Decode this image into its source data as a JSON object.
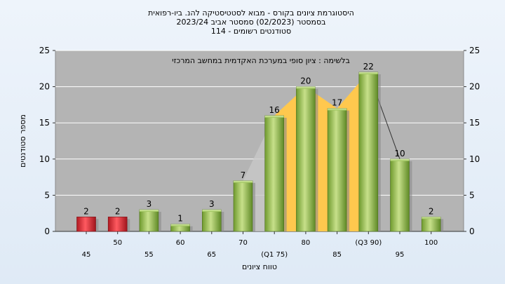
{
  "chart_data": {
    "type": "bar",
    "title_lines": [
      "היסטוגרמת ציונים בקורס - מבוא לסטטיסטיקה להנ. ביו-רפואית",
      "בסמסטר  (02/2023)  סמסטר אביב 2023/24",
      "סטודנטים רשומים - 114"
    ],
    "annotation": "בלשימה : ציון סופי במערכת האקדמית במחשב המרכזי",
    "ylabel": "מספר סטודנטים",
    "xlabel": "טווח ציונים",
    "ylim": [
      0,
      25
    ],
    "yticks": [
      0,
      5,
      10,
      15,
      20,
      25
    ],
    "categories": [
      "45",
      "50",
      "55",
      "60",
      "65",
      "70",
      "(Q1 75)",
      "80",
      "85",
      "(Q3 90)",
      "95",
      "100"
    ],
    "values": [
      2,
      2,
      3,
      1,
      3,
      7,
      16,
      20,
      17,
      22,
      10,
      2
    ],
    "bar_colors": [
      "red",
      "red",
      "green",
      "green",
      "green",
      "green",
      "green",
      "green",
      "green",
      "green",
      "green",
      "green"
    ],
    "colors": {
      "plot_bg": "#b4b4b4",
      "grid": "#ffffff",
      "red": "#e0323a",
      "green": "#9cc35a",
      "quartile_fill": "#ffc84e"
    }
  }
}
